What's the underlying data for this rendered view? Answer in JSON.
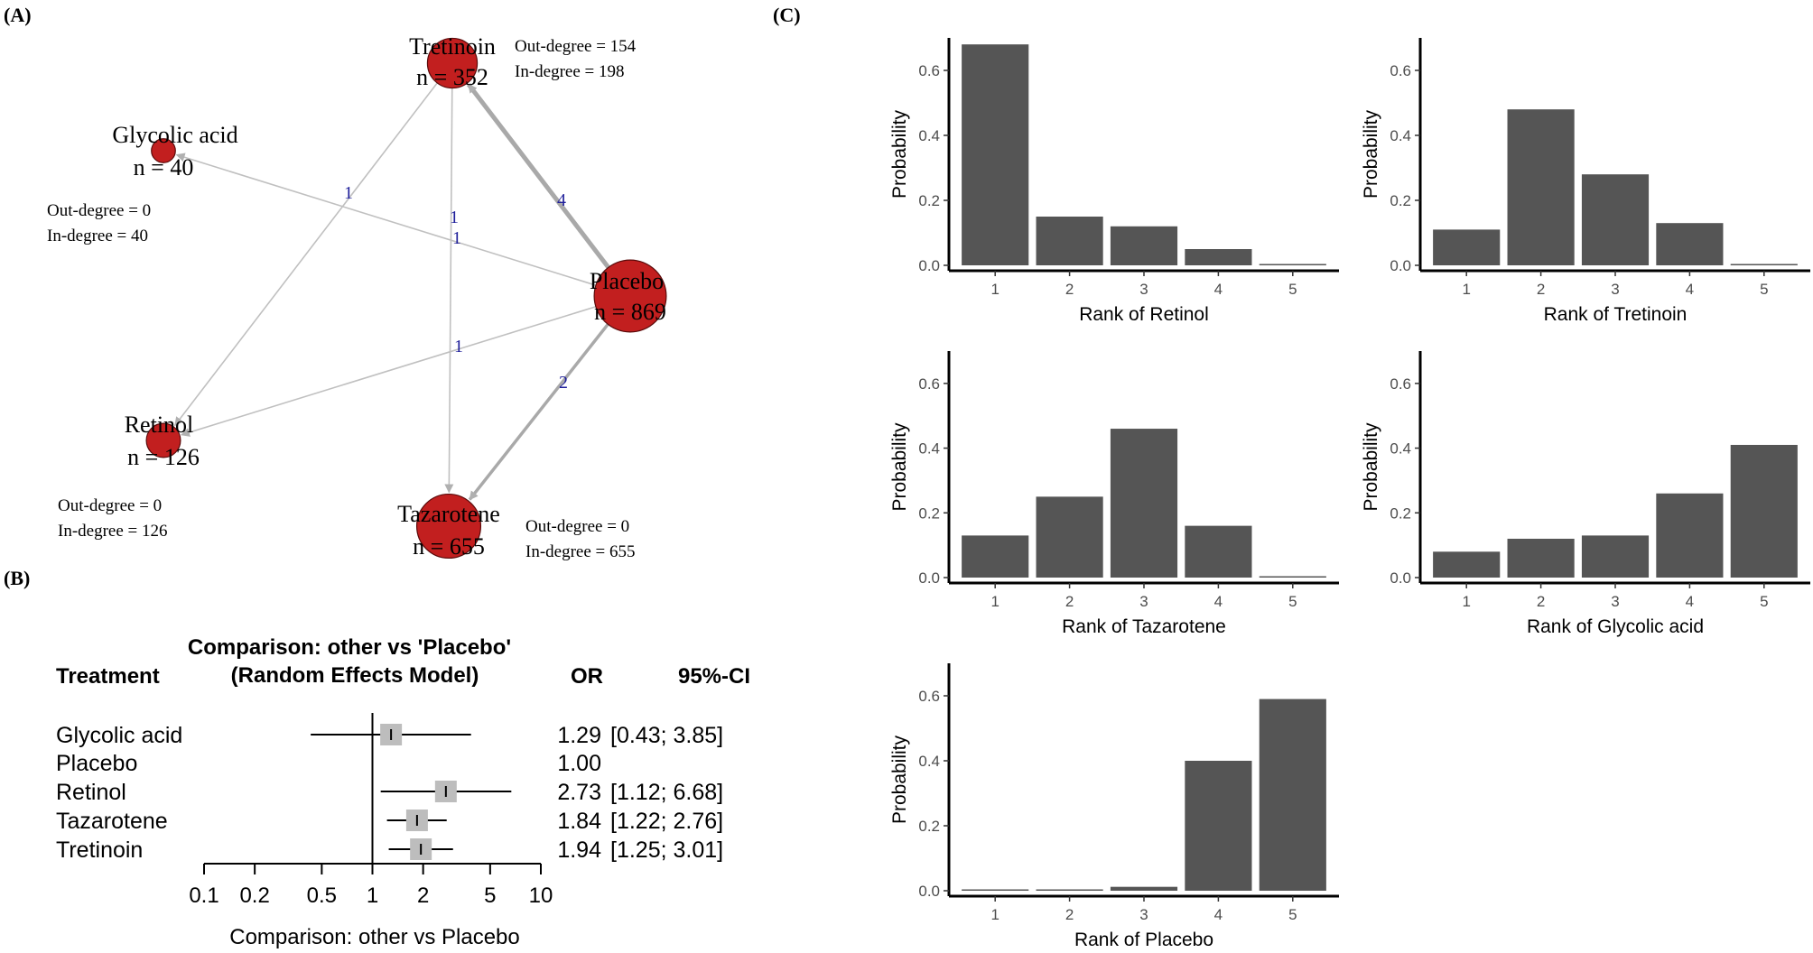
{
  "panel_labels": {
    "a": "(A)",
    "b": "(B)",
    "c": "(C)"
  },
  "colors": {
    "node": "#c21f1f",
    "edge": "#c0c0c0",
    "edge_label": "#1f1f9a",
    "bar": "#555555",
    "ci_box": "#bdbdbd",
    "text": "#000000"
  },
  "network": {
    "nodes": [
      {
        "id": "tretinoin",
        "label": "Tretinoin",
        "n_text": "n = 352",
        "n": 352,
        "out_text": "Out-degree = 154",
        "in_text": "In-degree = 198",
        "out_degree": 154,
        "in_degree": 198
      },
      {
        "id": "glycolic",
        "label": "Glycolic acid",
        "n_text": "n = 40",
        "n": 40,
        "out_text": "Out-degree = 0",
        "in_text": "In-degree = 40",
        "out_degree": 0,
        "in_degree": 40
      },
      {
        "id": "placebo",
        "label": "Placebo",
        "n_text": "n = 869",
        "n": 869,
        "out_text": "",
        "in_text": "",
        "out_degree": null,
        "in_degree": null
      },
      {
        "id": "retinol",
        "label": "Retinol",
        "n_text": "n = 126",
        "n": 126,
        "out_text": "Out-degree = 0",
        "in_text": "In-degree = 126",
        "out_degree": 0,
        "in_degree": 126
      },
      {
        "id": "tazarotene",
        "label": "Tazarotene",
        "n_text": "n = 655",
        "n": 655,
        "out_text": "Out-degree = 0",
        "in_text": "In-degree = 655",
        "out_degree": 0,
        "in_degree": 655
      }
    ],
    "edges": [
      {
        "from": "placebo",
        "to": "tretinoin",
        "label": "4",
        "weight": 4
      },
      {
        "from": "placebo",
        "to": "glycolic",
        "label": "1",
        "weight": 1
      },
      {
        "from": "tretinoin",
        "to": "retinol",
        "label": "1",
        "weight": 1
      },
      {
        "from": "tretinoin",
        "to": "tazarotene",
        "label": "1",
        "weight": 1
      },
      {
        "from": "placebo",
        "to": "retinol",
        "label": "1",
        "weight": 1
      },
      {
        "from": "placebo",
        "to": "tazarotene",
        "label": "2",
        "weight": 2
      }
    ]
  },
  "forest": {
    "title_line1": "Comparison: other vs 'Placebo'",
    "title_line2": "(Random Effects Model)",
    "col_treatment": "Treatment",
    "col_or": "OR",
    "col_ci": "95%-CI",
    "rows": [
      {
        "treatment": "Glycolic acid",
        "or": 1.29,
        "or_text": "1.29",
        "lo": 0.43,
        "hi": 3.85,
        "ci_text": "[0.43; 3.85]"
      },
      {
        "treatment": "Placebo",
        "or": 1.0,
        "or_text": "1.00",
        "lo": null,
        "hi": null,
        "ci_text": ""
      },
      {
        "treatment": "Retinol",
        "or": 2.73,
        "or_text": "2.73",
        "lo": 1.12,
        "hi": 6.68,
        "ci_text": "[1.12; 6.68]"
      },
      {
        "treatment": "Tazarotene",
        "or": 1.84,
        "or_text": "1.84",
        "lo": 1.22,
        "hi": 2.76,
        "ci_text": "[1.22; 2.76]"
      },
      {
        "treatment": "Tretinoin",
        "or": 1.94,
        "or_text": "1.94",
        "lo": 1.25,
        "hi": 3.01,
        "ci_text": "[1.25; 3.01]"
      }
    ],
    "axis_ticks": [
      0.1,
      0.2,
      0.5,
      1,
      2,
      5,
      10
    ],
    "axis_tick_labels": [
      "0.1",
      "0.2",
      "0.5",
      "1",
      "2",
      "5",
      "10"
    ],
    "xlabel": "Comparison: other vs Placebo",
    "xlim": [
      0.1,
      10
    ]
  },
  "chart_data": [
    {
      "type": "bar",
      "title": "",
      "xlabel": "Rank of Retinol",
      "ylabel": "Probability",
      "categories": [
        "1",
        "2",
        "3",
        "4",
        "5"
      ],
      "values": [
        0.68,
        0.15,
        0.12,
        0.05,
        0.003
      ],
      "ylim": [
        0,
        0.7
      ],
      "yticks": [
        "0.0",
        "0.2",
        "0.4",
        "0.6"
      ]
    },
    {
      "type": "bar",
      "title": "",
      "xlabel": "Rank of Tretinoin",
      "ylabel": "Probability",
      "categories": [
        "1",
        "2",
        "3",
        "4",
        "5"
      ],
      "values": [
        0.11,
        0.48,
        0.28,
        0.13,
        0.003
      ],
      "ylim": [
        0,
        0.7
      ],
      "yticks": [
        "0.0",
        "0.2",
        "0.4",
        "0.6"
      ]
    },
    {
      "type": "bar",
      "title": "",
      "xlabel": "Rank of Tazarotene",
      "ylabel": "Probability",
      "categories": [
        "1",
        "2",
        "3",
        "4",
        "5"
      ],
      "values": [
        0.13,
        0.25,
        0.46,
        0.16,
        0.003
      ],
      "ylim": [
        0,
        0.7
      ],
      "yticks": [
        "0.0",
        "0.2",
        "0.4",
        "0.6"
      ]
    },
    {
      "type": "bar",
      "title": "",
      "xlabel": "Rank of Glycolic acid",
      "ylabel": "Probability",
      "categories": [
        "1",
        "2",
        "3",
        "4",
        "5"
      ],
      "values": [
        0.08,
        0.12,
        0.13,
        0.26,
        0.41
      ],
      "ylim": [
        0,
        0.7
      ],
      "yticks": [
        "0.0",
        "0.2",
        "0.4",
        "0.6"
      ]
    },
    {
      "type": "bar",
      "title": "",
      "xlabel": "Rank of Placebo",
      "ylabel": "Probability",
      "categories": [
        "1",
        "2",
        "3",
        "4",
        "5"
      ],
      "values": [
        0.003,
        0.003,
        0.012,
        0.4,
        0.59
      ],
      "ylim": [
        0,
        0.7
      ],
      "yticks": [
        "0.0",
        "0.2",
        "0.4",
        "0.6"
      ]
    }
  ]
}
